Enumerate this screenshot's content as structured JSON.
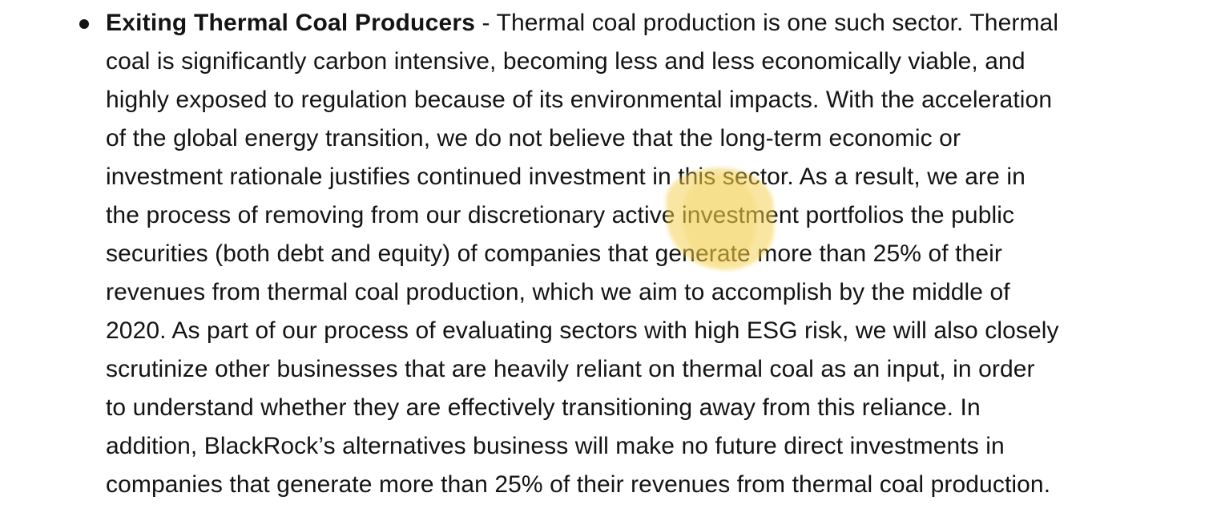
{
  "colors": {
    "background": "#FFFFFF",
    "text_color": "#141414",
    "highlight_yellow": "#F3CD46"
  },
  "paragraph": {
    "bullet_glyph": "•",
    "title": "Exiting Thermal Coal Producers",
    "separator": " - ",
    "lines": [
      "Thermal coal production is one such sector. Thermal",
      "coal is significantly carbon intensive, becoming less and less economically viable, and",
      "highly exposed to regulation because of its environmental impacts. With the acceleration",
      "of the global energy transition, we do not believe that the long-term economic or",
      "investment rationale justifies continued investment in this sector. As a result, we are in",
      "the process of removing from our discretionary active investment portfolios the public",
      "securities (both debt and equity) of companies that generate more than 25% of their",
      "revenues from thermal coal production, which we aim to accomplish by the middle of",
      "2020. As part of our process of evaluating sectors with high ESG risk, we will also closely",
      "scrutinize other businesses that are heavily reliant on thermal coal as an input, in order",
      "to understand whether they are effectively transitioning away from this reliance. In",
      "addition, BlackRock’s alternatives business will make no future direct investments in",
      "companies that generate more than 25% of their revenues from thermal coal production."
    ]
  },
  "annotations": {
    "highlight_covers_text": "ment in / active i / that ge"
  }
}
